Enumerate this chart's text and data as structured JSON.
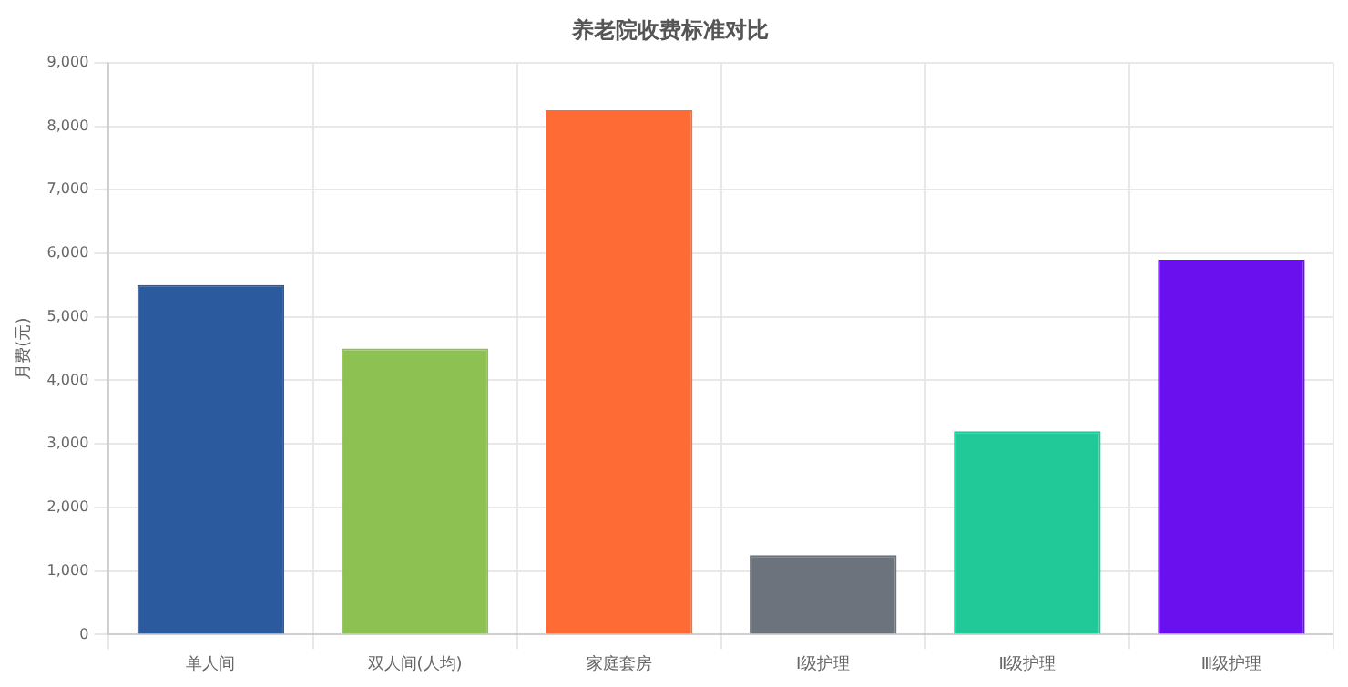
{
  "chart_data": {
    "type": "bar",
    "title": "养老院收费标准对比",
    "ylabel": "月费(元)",
    "categories": [
      "单人间",
      "双人间(人均)",
      "家庭套房",
      "Ⅰ级护理",
      "Ⅱ级护理",
      "Ⅲ级护理"
    ],
    "values": [
      5500,
      4500,
      8250,
      1250,
      3200,
      5900
    ],
    "colors": [
      "#2b5a9e",
      "#8dc151",
      "#ff6b35",
      "#6c737c",
      "#22c998",
      "#6a10ef"
    ],
    "ylim": [
      0,
      9000
    ],
    "yticks": [
      0,
      {
        "value": 1000,
        "label": "1,000"
      },
      {
        "value": 2000,
        "label": "2,000"
      },
      {
        "value": 3000,
        "label": "3,000"
      },
      {
        "value": 4000,
        "label": "4,000"
      },
      {
        "value": 5000,
        "label": "5,000"
      },
      {
        "value": 6000,
        "label": "6,000"
      },
      {
        "value": 7000,
        "label": "7,000"
      },
      {
        "value": 8000,
        "label": "8,000"
      },
      {
        "value": 9000,
        "label": "9,000"
      }
    ],
    "grid": true
  }
}
